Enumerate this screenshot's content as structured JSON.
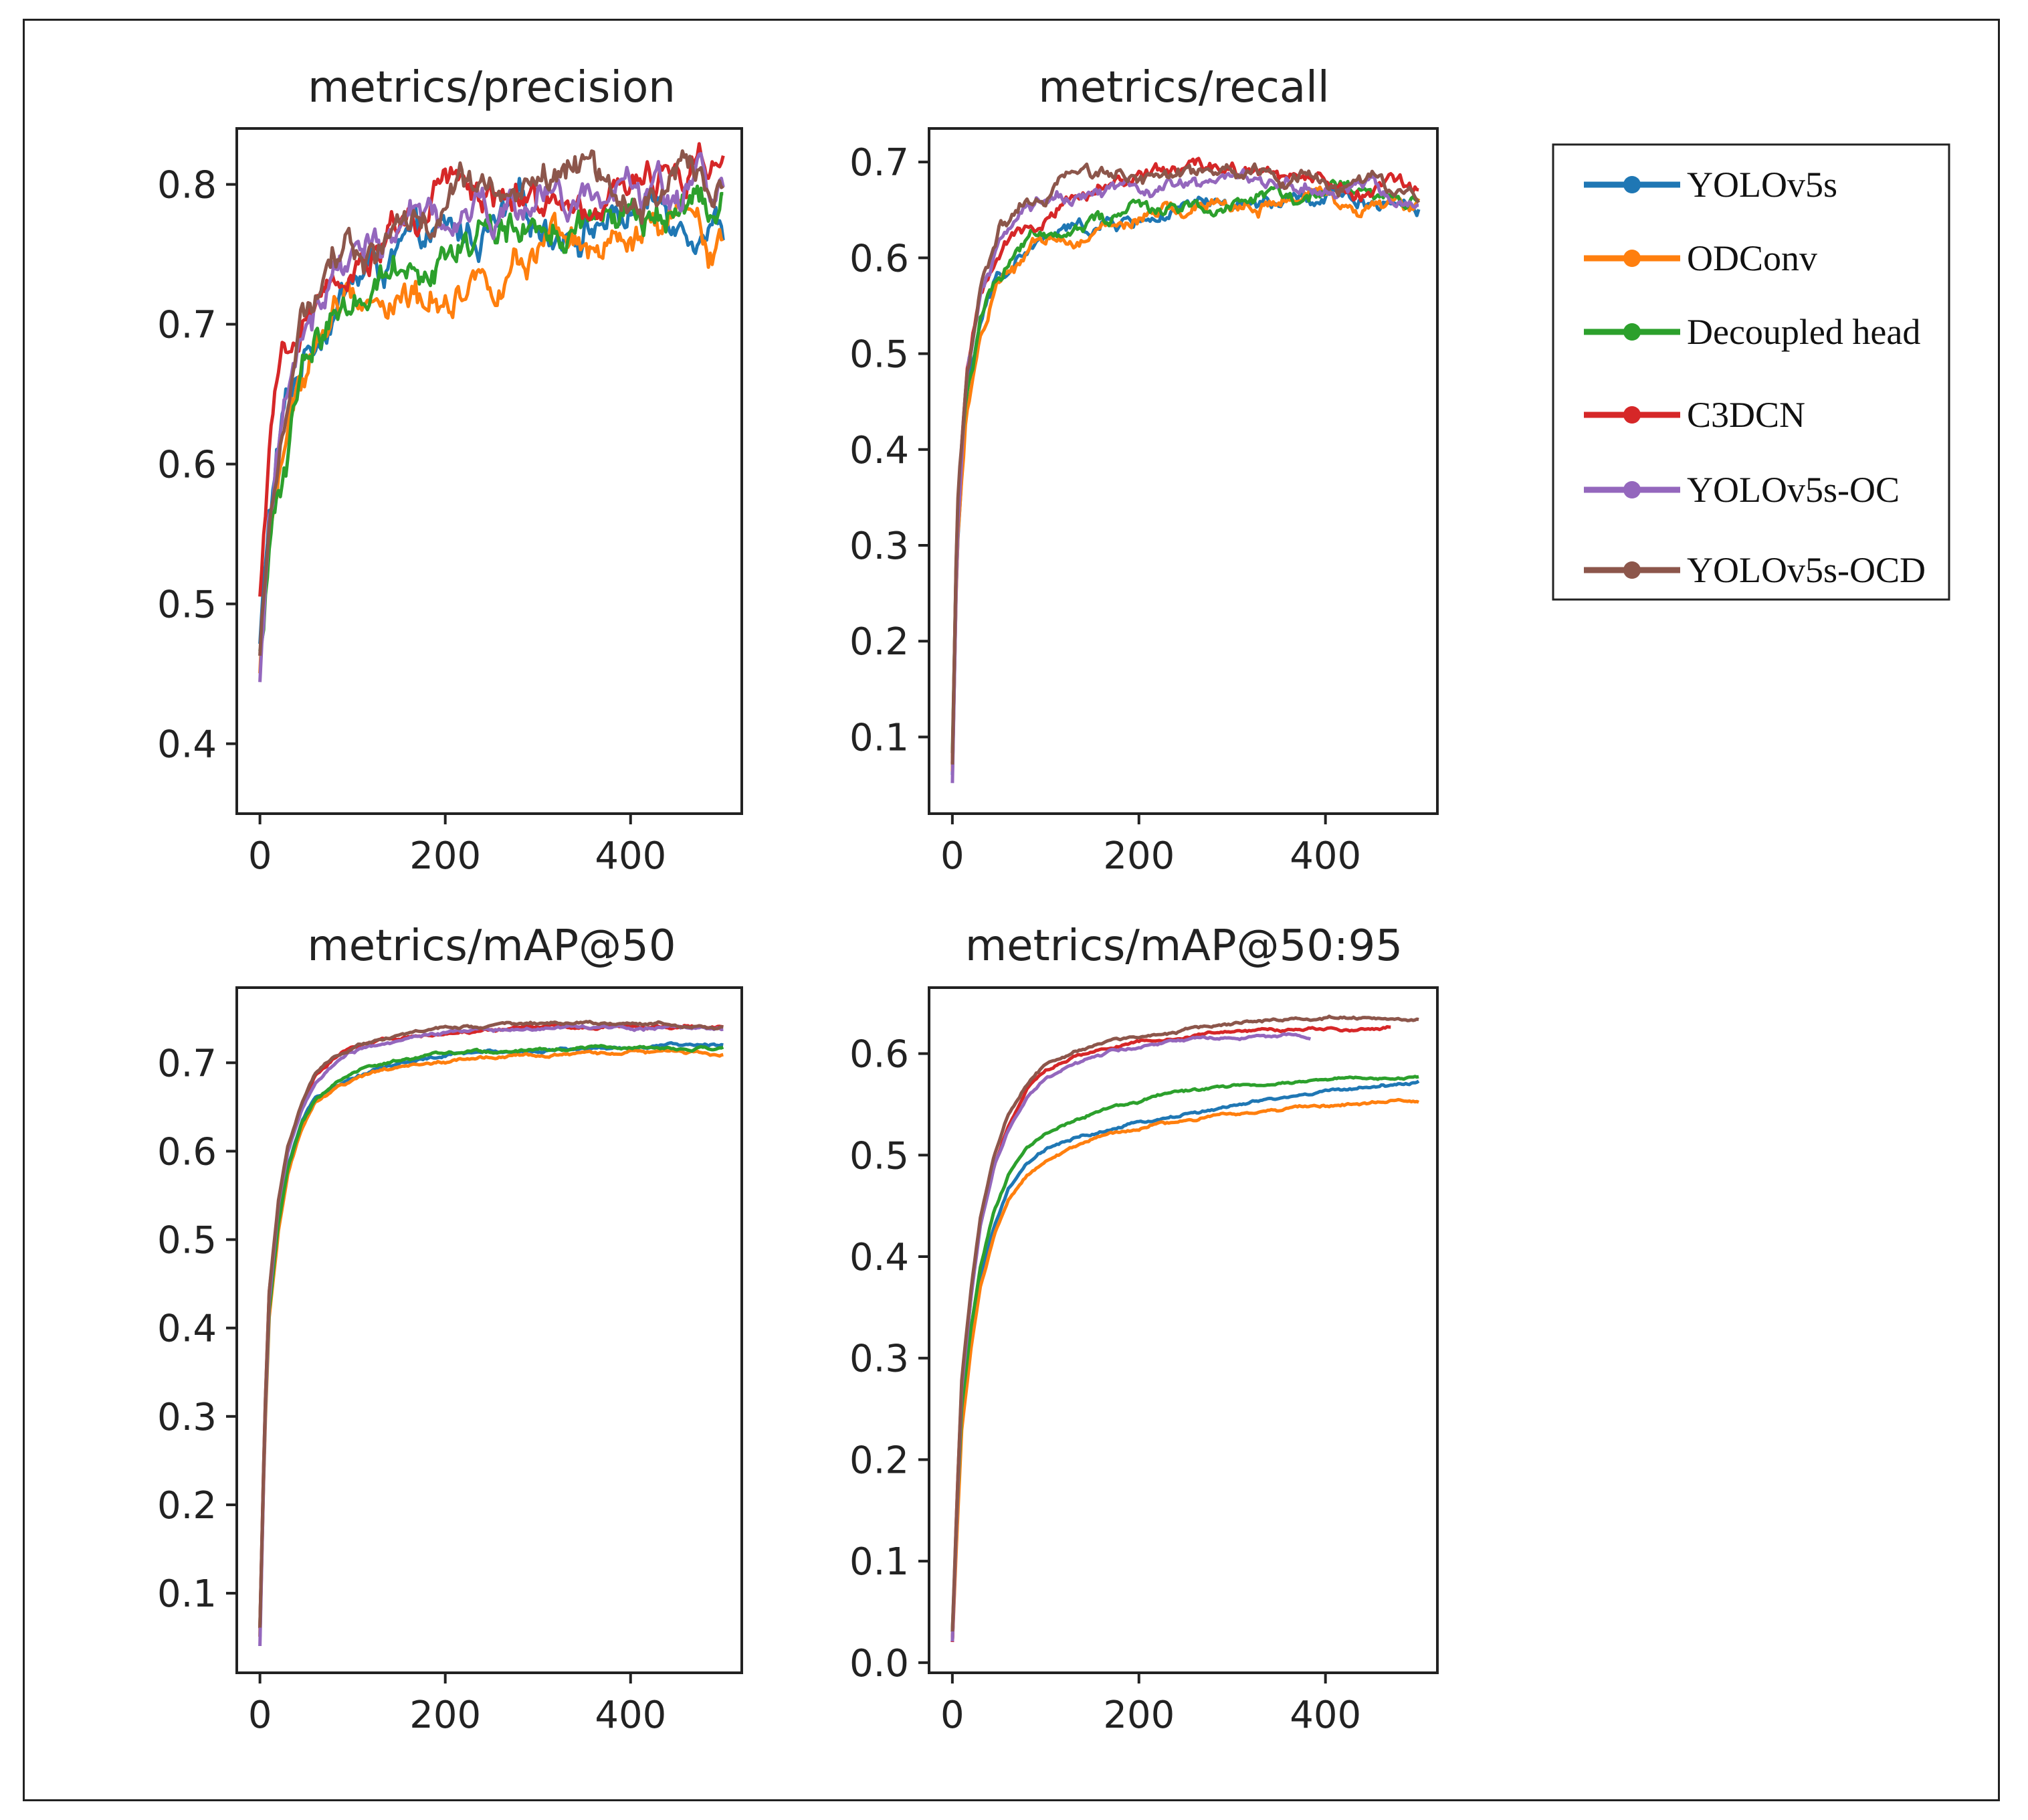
{
  "legend": {
    "items": [
      {
        "label": "YOLOv5s",
        "color": "#1f77b4"
      },
      {
        "label": "ODConv",
        "color": "#ff7f0e"
      },
      {
        "label": "Decoupled head",
        "color": "#2ca02c"
      },
      {
        "label": "C3DCN",
        "color": "#d62728"
      },
      {
        "label": "YOLOv5s-OC",
        "color": "#9467bd"
      },
      {
        "label": "YOLOv5s-OCD",
        "color": "#8c564b"
      }
    ]
  },
  "chart_data": [
    {
      "type": "line",
      "title": "metrics/precision",
      "xlabel": "",
      "ylabel": "",
      "xlim": [
        -25,
        520
      ],
      "ylim": [
        0.35,
        0.84
      ],
      "xticks": [
        0,
        200,
        400
      ],
      "yticks": [
        0.4,
        0.5,
        0.6,
        0.7,
        0.8
      ],
      "noise": 0.012,
      "series": [
        {
          "name": "YOLOv5s",
          "x": [
            0,
            10,
            25,
            50,
            80,
            120,
            170,
            220,
            280,
            340,
            400,
            450,
            500
          ],
          "y": [
            0.47,
            0.56,
            0.63,
            0.68,
            0.72,
            0.74,
            0.75,
            0.76,
            0.77,
            0.775,
            0.78,
            0.785,
            0.78
          ]
        },
        {
          "name": "ODConv",
          "x": [
            0,
            10,
            25,
            50,
            80,
            120,
            170,
            220,
            280,
            340,
            400,
            450,
            500
          ],
          "y": [
            0.45,
            0.54,
            0.61,
            0.67,
            0.71,
            0.72,
            0.715,
            0.735,
            0.745,
            0.74,
            0.75,
            0.765,
            0.755
          ]
        },
        {
          "name": "Decoupled head",
          "x": [
            0,
            10,
            25,
            50,
            80,
            120,
            170,
            220,
            280,
            340,
            400,
            450,
            500
          ],
          "y": [
            0.46,
            0.53,
            0.6,
            0.67,
            0.71,
            0.735,
            0.75,
            0.76,
            0.765,
            0.77,
            0.77,
            0.78,
            0.79
          ]
        },
        {
          "name": "C3DCN",
          "x": [
            0,
            10,
            25,
            50,
            80,
            120,
            170,
            220,
            280,
            340,
            400,
            450,
            500
          ],
          "y": [
            0.5,
            0.6,
            0.66,
            0.71,
            0.745,
            0.755,
            0.775,
            0.79,
            0.795,
            0.795,
            0.8,
            0.81,
            0.815
          ]
        },
        {
          "name": "YOLOv5s-OC",
          "x": [
            0,
            10,
            25,
            50,
            80,
            120,
            170,
            220,
            280,
            340,
            400,
            450,
            500
          ],
          "y": [
            0.44,
            0.55,
            0.64,
            0.7,
            0.735,
            0.755,
            0.765,
            0.775,
            0.78,
            0.785,
            0.79,
            0.795,
            0.8
          ]
        },
        {
          "name": "YOLOv5s-OCD",
          "x": [
            0,
            10,
            25,
            50,
            80,
            120,
            170,
            220,
            280,
            340,
            400,
            450,
            500
          ],
          "y": [
            0.46,
            0.57,
            0.65,
            0.71,
            0.74,
            0.75,
            0.77,
            0.78,
            0.795,
            0.8,
            0.8,
            0.805,
            0.815
          ]
        }
      ]
    },
    {
      "type": "line",
      "title": "metrics/recall",
      "xlabel": "",
      "ylabel": "",
      "xlim": [
        -25,
        520
      ],
      "ylim": [
        0.02,
        0.735
      ],
      "xticks": [
        0,
        200,
        400
      ],
      "yticks": [
        0.1,
        0.2,
        0.3,
        0.4,
        0.5,
        0.6,
        0.7
      ],
      "noise": 0.007,
      "series": [
        {
          "name": "YOLOv5s",
          "x": [
            0,
            5,
            15,
            30,
            50,
            80,
            120,
            170,
            230,
            300,
            370,
            430,
            500
          ],
          "y": [
            0.06,
            0.3,
            0.45,
            0.53,
            0.58,
            0.61,
            0.625,
            0.635,
            0.645,
            0.65,
            0.655,
            0.66,
            0.66
          ]
        },
        {
          "name": "ODConv",
          "x": [
            0,
            5,
            15,
            30,
            50,
            80,
            120,
            170,
            230,
            300,
            370,
            430,
            500
          ],
          "y": [
            0.06,
            0.3,
            0.44,
            0.52,
            0.57,
            0.6,
            0.62,
            0.63,
            0.645,
            0.655,
            0.66,
            0.66,
            0.655
          ]
        },
        {
          "name": "Decoupled head",
          "x": [
            0,
            5,
            15,
            30,
            50,
            80,
            120,
            170,
            230,
            300,
            370,
            430,
            500
          ],
          "y": [
            0.08,
            0.32,
            0.46,
            0.54,
            0.59,
            0.62,
            0.635,
            0.645,
            0.655,
            0.66,
            0.665,
            0.67,
            0.66
          ]
        },
        {
          "name": "C3DCN",
          "x": [
            0,
            5,
            15,
            30,
            50,
            80,
            120,
            170,
            230,
            300,
            370,
            430,
            500
          ],
          "y": [
            0.07,
            0.32,
            0.47,
            0.56,
            0.61,
            0.645,
            0.665,
            0.675,
            0.685,
            0.69,
            0.685,
            0.675,
            0.665
          ]
        },
        {
          "name": "YOLOv5s-OC",
          "x": [
            0,
            5,
            15,
            30,
            50,
            80,
            120,
            170,
            230,
            300,
            370,
            430,
            500
          ],
          "y": [
            0.05,
            0.31,
            0.47,
            0.56,
            0.61,
            0.645,
            0.66,
            0.665,
            0.67,
            0.675,
            0.675,
            0.67,
            0.66
          ]
        },
        {
          "name": "YOLOv5s-OCD",
          "x": [
            0,
            5,
            15,
            30,
            50,
            80,
            120,
            170,
            230,
            300,
            370,
            430,
            500
          ],
          "y": [
            0.07,
            0.33,
            0.48,
            0.57,
            0.63,
            0.66,
            0.675,
            0.68,
            0.685,
            0.69,
            0.685,
            0.675,
            0.665
          ]
        }
      ]
    },
    {
      "type": "line",
      "title": "metrics/mAP@50",
      "xlabel": "",
      "ylabel": "",
      "xlim": [
        -25,
        520
      ],
      "ylim": [
        0.01,
        0.785
      ],
      "xticks": [
        0,
        200,
        400
      ],
      "yticks": [
        0.1,
        0.2,
        0.3,
        0.4,
        0.5,
        0.6,
        0.7
      ],
      "noise": 0.0015,
      "series": [
        {
          "name": "YOLOv5s",
          "x": [
            0,
            5,
            10,
            20,
            30,
            45,
            60,
            80,
            100,
            130,
            170,
            220,
            280,
            350,
            420,
            500
          ],
          "y": [
            0.05,
            0.28,
            0.42,
            0.52,
            0.58,
            0.63,
            0.66,
            0.675,
            0.685,
            0.695,
            0.703,
            0.71,
            0.714,
            0.716,
            0.718,
            0.72
          ]
        },
        {
          "name": "ODConv",
          "x": [
            0,
            5,
            10,
            20,
            30,
            45,
            60,
            80,
            100,
            130,
            170,
            220,
            280,
            350,
            420,
            500
          ],
          "y": [
            0.05,
            0.27,
            0.41,
            0.51,
            0.575,
            0.625,
            0.655,
            0.67,
            0.68,
            0.69,
            0.698,
            0.704,
            0.708,
            0.71,
            0.712,
            0.71
          ]
        },
        {
          "name": "Decoupled head",
          "x": [
            0,
            5,
            10,
            20,
            30,
            45,
            60,
            80,
            100,
            130,
            170,
            220,
            280,
            350,
            420,
            500
          ],
          "y": [
            0.06,
            0.28,
            0.42,
            0.52,
            0.58,
            0.63,
            0.66,
            0.678,
            0.688,
            0.698,
            0.706,
            0.712,
            0.716,
            0.718,
            0.718,
            0.716
          ]
        },
        {
          "name": "C3DCN",
          "x": [
            0,
            5,
            10,
            20,
            30,
            45,
            60,
            80,
            100,
            130,
            170,
            220,
            280,
            350,
            420,
            500
          ],
          "y": [
            0.06,
            0.29,
            0.44,
            0.54,
            0.6,
            0.65,
            0.685,
            0.705,
            0.715,
            0.724,
            0.732,
            0.737,
            0.74,
            0.742,
            0.741,
            0.74
          ]
        },
        {
          "name": "YOLOv5s-OC",
          "x": [
            0,
            5,
            10,
            20,
            30,
            45,
            60,
            80,
            100,
            130,
            170,
            220,
            280,
            350,
            420,
            500
          ],
          "y": [
            0.04,
            0.28,
            0.43,
            0.54,
            0.6,
            0.65,
            0.68,
            0.7,
            0.712,
            0.722,
            0.73,
            0.735,
            0.738,
            0.74,
            0.74,
            0.738
          ]
        },
        {
          "name": "YOLOv5s-OCD",
          "x": [
            0,
            5,
            10,
            20,
            30,
            45,
            60,
            80,
            100,
            130,
            170,
            220,
            280,
            350,
            420,
            500
          ],
          "y": [
            0.06,
            0.29,
            0.44,
            0.545,
            0.605,
            0.655,
            0.688,
            0.708,
            0.718,
            0.727,
            0.735,
            0.74,
            0.743,
            0.746,
            0.744,
            0.74
          ]
        }
      ]
    },
    {
      "type": "line",
      "title": "metrics/mAP@50:95",
      "xlabel": "",
      "ylabel": "",
      "xlim": [
        -25,
        520
      ],
      "ylim": [
        -0.01,
        0.665
      ],
      "xticks": [
        0,
        200,
        400
      ],
      "yticks": [
        0.0,
        0.1,
        0.2,
        0.3,
        0.4,
        0.5,
        0.6
      ],
      "noise": 0.0012,
      "series": [
        {
          "name": "YOLOv5s",
          "x": [
            0,
            5,
            10,
            20,
            30,
            45,
            60,
            80,
            100,
            130,
            170,
            220,
            280,
            350,
            420,
            500
          ],
          "y": [
            0.02,
            0.14,
            0.24,
            0.32,
            0.38,
            0.43,
            0.465,
            0.49,
            0.505,
            0.515,
            0.525,
            0.535,
            0.545,
            0.555,
            0.565,
            0.572
          ]
        },
        {
          "name": "ODConv",
          "x": [
            0,
            5,
            10,
            20,
            30,
            45,
            60,
            80,
            100,
            130,
            170,
            220,
            280,
            350,
            420,
            500
          ],
          "y": [
            0.02,
            0.13,
            0.23,
            0.31,
            0.37,
            0.42,
            0.455,
            0.48,
            0.495,
            0.508,
            0.52,
            0.53,
            0.538,
            0.545,
            0.55,
            0.553
          ]
        },
        {
          "name": "Decoupled head",
          "x": [
            0,
            5,
            10,
            20,
            30,
            45,
            60,
            80,
            100,
            130,
            170,
            220,
            280,
            350,
            420,
            500
          ],
          "y": [
            0.03,
            0.15,
            0.25,
            0.33,
            0.39,
            0.445,
            0.48,
            0.508,
            0.522,
            0.535,
            0.547,
            0.557,
            0.566,
            0.572,
            0.576,
            0.577
          ]
        },
        {
          "name": "C3DCN",
          "x": [
            0,
            5,
            10,
            20,
            30,
            45,
            60,
            80,
            100,
            130,
            170,
            220,
            280,
            350,
            420,
            470
          ],
          "y": [
            0.02,
            0.16,
            0.27,
            0.36,
            0.43,
            0.49,
            0.53,
            0.565,
            0.583,
            0.597,
            0.607,
            0.615,
            0.62,
            0.623,
            0.624,
            0.625
          ]
        },
        {
          "name": "YOLOv5s-OC",
          "x": [
            0,
            5,
            10,
            20,
            30,
            45,
            60,
            80,
            100,
            130,
            170,
            220,
            280,
            330,
            360,
            385
          ],
          "y": [
            0.02,
            0.15,
            0.27,
            0.36,
            0.43,
            0.49,
            0.525,
            0.556,
            0.575,
            0.59,
            0.602,
            0.61,
            0.615,
            0.618,
            0.618,
            0.615
          ]
        },
        {
          "name": "YOLOv5s-OCD",
          "x": [
            0,
            5,
            10,
            20,
            30,
            45,
            60,
            80,
            100,
            130,
            170,
            220,
            280,
            350,
            420,
            500
          ],
          "y": [
            0.03,
            0.16,
            0.28,
            0.37,
            0.44,
            0.5,
            0.54,
            0.57,
            0.589,
            0.602,
            0.612,
            0.62,
            0.627,
            0.633,
            0.636,
            0.634
          ]
        }
      ]
    }
  ]
}
